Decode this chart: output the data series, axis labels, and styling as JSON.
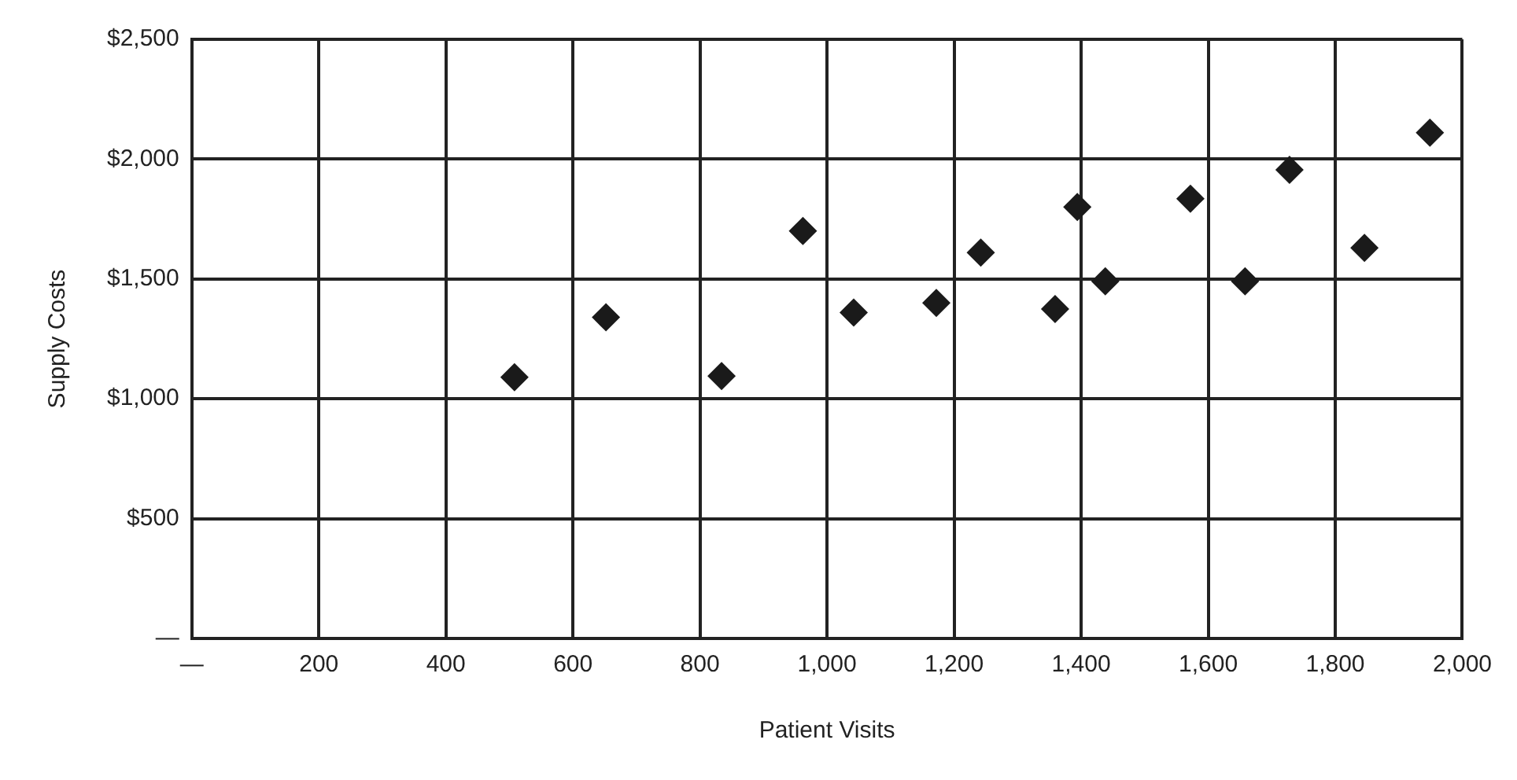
{
  "chart_data": {
    "type": "scatter",
    "xlabel": "Patient Visits",
    "ylabel": "Supply Costs",
    "x": [
      508,
      652,
      834,
      962,
      1042,
      1172,
      1242,
      1359,
      1394,
      1438,
      1572,
      1658,
      1728,
      1846,
      1949
    ],
    "series": [
      {
        "color": "#1a1a1a",
        "values": [
          1090,
          1340,
          1095,
          1700,
          1360,
          1400,
          1610,
          1375,
          1800,
          1490,
          1835,
          1490,
          1955,
          1630,
          2110
        ]
      }
    ],
    "xlim": [
      0,
      2000
    ],
    "ylim": [
      0,
      2500
    ],
    "xticks": [
      {
        "value": 0,
        "label": "—"
      },
      {
        "value": 200,
        "label": "200"
      },
      {
        "value": 400,
        "label": "400"
      },
      {
        "value": 600,
        "label": "600"
      },
      {
        "value": 800,
        "label": "800"
      },
      {
        "value": 1000,
        "label": "1,000"
      },
      {
        "value": 1200,
        "label": "1,200"
      },
      {
        "value": 1400,
        "label": "1,400"
      },
      {
        "value": 1600,
        "label": "1,600"
      },
      {
        "value": 1800,
        "label": "1,800"
      },
      {
        "value": 2000,
        "label": "2,000"
      }
    ],
    "yticks": [
      {
        "value": 0,
        "label": "—"
      },
      {
        "value": 500,
        "label": "$500"
      },
      {
        "value": 1000,
        "label": "$1,000"
      },
      {
        "value": 1500,
        "label": "$1,500"
      },
      {
        "value": 2000,
        "label": "$2,000"
      },
      {
        "value": 2500,
        "label": "$2,500"
      }
    ],
    "grid": true,
    "legend": false,
    "marker": "diamond"
  }
}
